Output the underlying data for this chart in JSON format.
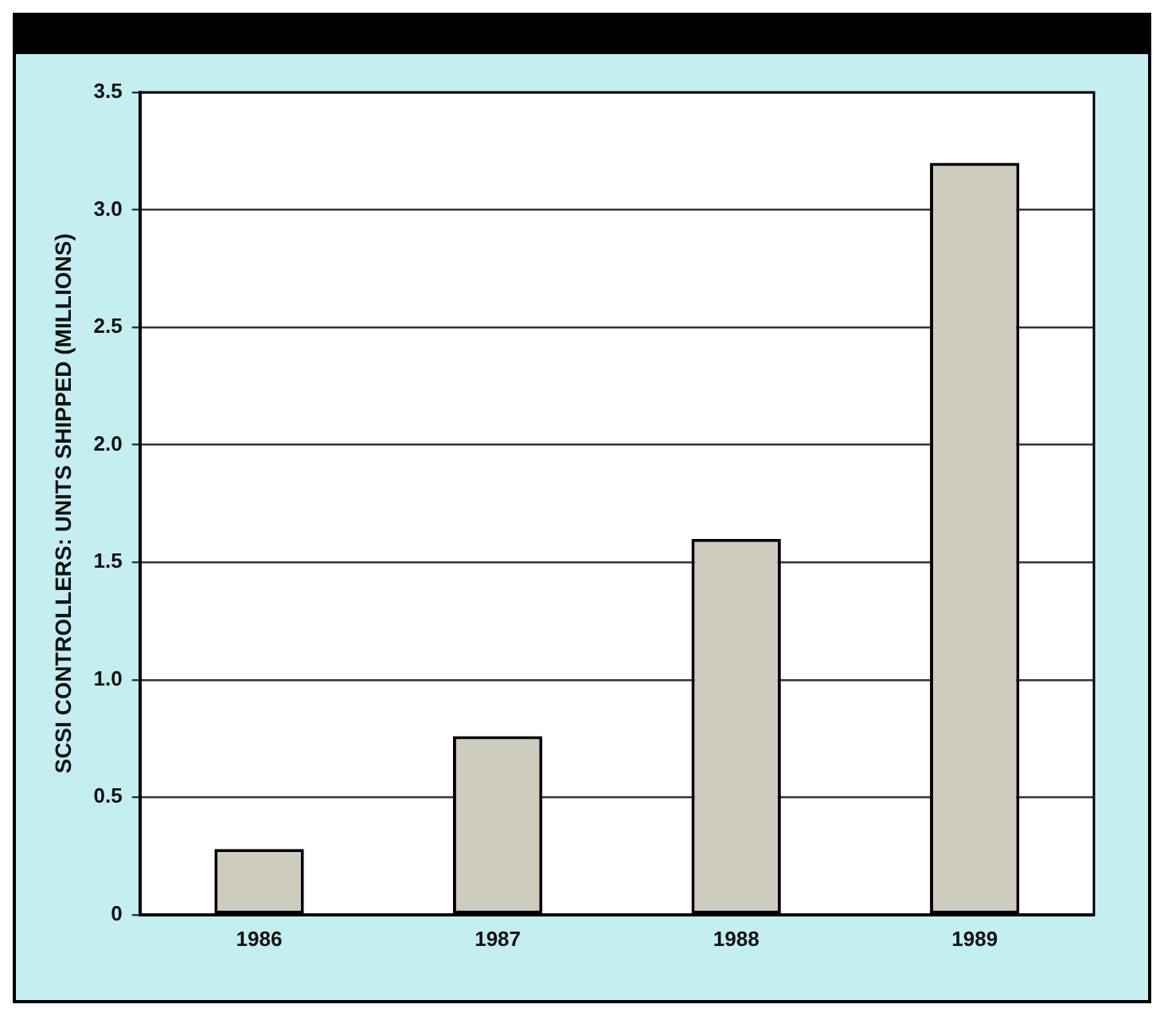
{
  "chart_data": {
    "type": "bar",
    "ylabel": "SCSI CONTROLLERS: UNITS SHIPPED (MILLIONS)",
    "categories": [
      "1986",
      "1987",
      "1988",
      "1989"
    ],
    "values": [
      0.28,
      0.76,
      1.6,
      3.2
    ],
    "color": "#cdccbf",
    "ylim": [
      0,
      3.5
    ],
    "yticks": [
      0,
      {
        "value": 0.5,
        "label": "0.5"
      },
      {
        "value": 1,
        "label": "1.0"
      },
      {
        "value": 1.5,
        "label": "1.5"
      },
      {
        "value": 2,
        "label": "2.0"
      },
      {
        "value": 2.5,
        "label": "2.5"
      },
      {
        "value": 3,
        "label": "3.0"
      },
      {
        "value": 3.5,
        "label": "3.5"
      }
    ],
    "grid": "y",
    "legend": false
  }
}
